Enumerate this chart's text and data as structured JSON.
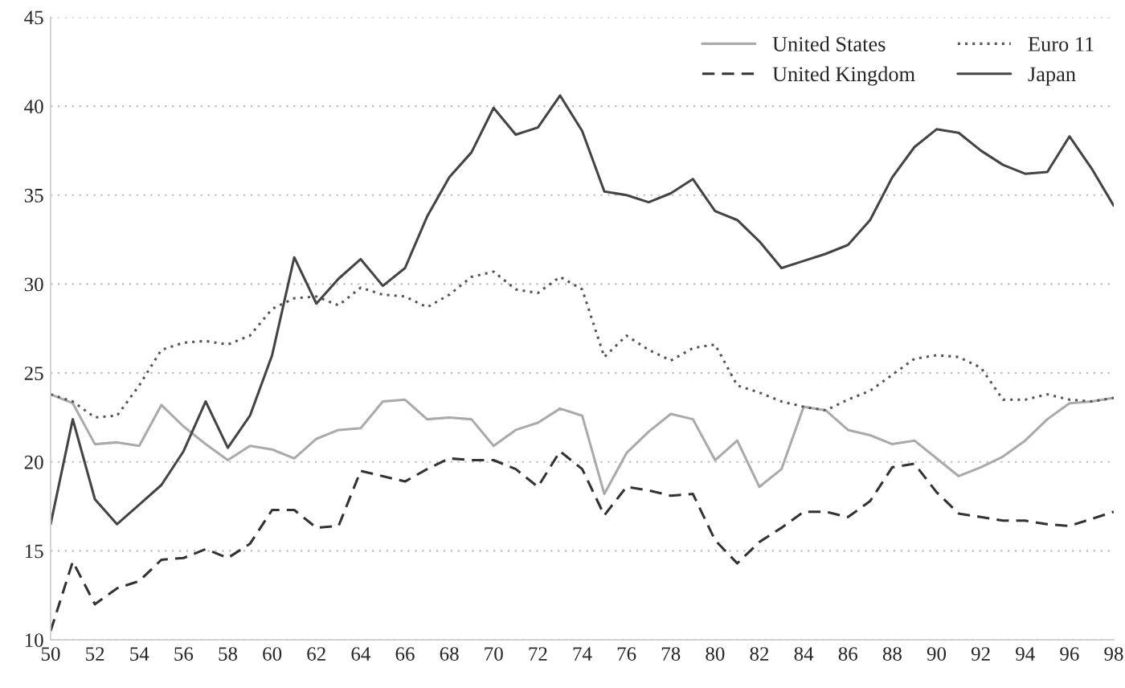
{
  "chart_data": {
    "type": "line",
    "x": [
      50,
      51,
      52,
      53,
      54,
      55,
      56,
      57,
      58,
      59,
      60,
      61,
      62,
      63,
      64,
      65,
      66,
      67,
      68,
      69,
      70,
      71,
      72,
      73,
      74,
      75,
      76,
      77,
      78,
      79,
      80,
      81,
      82,
      83,
      84,
      85,
      86,
      87,
      88,
      89,
      90,
      91,
      92,
      93,
      94,
      95,
      96,
      97,
      98
    ],
    "series": [
      {
        "name": "United States",
        "color": "#aaaaaa",
        "line_style": "solid",
        "values": [
          23.8,
          23.3,
          21.0,
          21.1,
          20.9,
          23.2,
          22.0,
          21.0,
          20.1,
          20.9,
          20.7,
          20.2,
          21.3,
          21.8,
          21.9,
          23.4,
          23.5,
          22.4,
          22.5,
          22.4,
          20.9,
          21.8,
          22.2,
          23.0,
          22.6,
          18.2,
          20.5,
          21.7,
          22.7,
          22.4,
          20.1,
          21.2,
          18.6,
          19.6,
          23.1,
          22.9,
          21.8,
          21.5,
          21.0,
          21.2,
          20.2,
          19.2,
          19.7,
          20.3,
          21.2,
          22.4,
          23.3,
          23.4,
          23.6
        ]
      },
      {
        "name": "Euro 11",
        "color": "#555555",
        "line_style": "dotted",
        "values": [
          23.8,
          23.4,
          22.5,
          22.6,
          24.3,
          26.3,
          26.7,
          26.8,
          26.6,
          27.1,
          28.6,
          29.2,
          29.3,
          28.8,
          29.8,
          29.4,
          29.3,
          28.7,
          29.4,
          30.4,
          30.7,
          29.7,
          29.5,
          30.4,
          29.7,
          25.9,
          27.1,
          26.3,
          25.7,
          26.4,
          26.6,
          24.3,
          23.9,
          23.4,
          23.1,
          22.9,
          23.5,
          24.0,
          24.9,
          25.8,
          26.0,
          25.9,
          25.3,
          23.5,
          23.5,
          23.8,
          23.5,
          23.4,
          23.6
        ]
      },
      {
        "name": "United Kingdom",
        "color": "#333333",
        "line_style": "dashed",
        "values": [
          10.5,
          14.4,
          12.0,
          12.9,
          13.3,
          14.5,
          14.6,
          15.1,
          14.6,
          15.4,
          17.3,
          17.3,
          16.3,
          16.4,
          19.5,
          19.2,
          18.9,
          19.6,
          20.2,
          20.1,
          20.1,
          19.6,
          18.6,
          20.6,
          19.6,
          17.0,
          18.6,
          18.4,
          18.1,
          18.2,
          15.6,
          14.3,
          15.5,
          16.3,
          17.2,
          17.2,
          16.9,
          17.8,
          19.7,
          19.9,
          18.3,
          17.1,
          16.9,
          16.7,
          16.7,
          16.5,
          16.4,
          16.8,
          17.2
        ]
      },
      {
        "name": "Japan",
        "color": "#444444",
        "line_style": "solid",
        "values": [
          16.5,
          22.4,
          17.9,
          16.5,
          17.6,
          18.7,
          20.6,
          23.4,
          20.8,
          22.6,
          26.0,
          31.5,
          28.9,
          30.3,
          31.4,
          29.9,
          30.9,
          33.8,
          36.0,
          37.4,
          39.9,
          38.4,
          38.8,
          40.6,
          38.6,
          35.2,
          35.0,
          34.6,
          35.1,
          35.9,
          34.1,
          33.6,
          32.4,
          30.9,
          31.3,
          31.7,
          32.2,
          33.6,
          36.0,
          37.7,
          38.7,
          38.5,
          37.5,
          36.7,
          36.2,
          36.3,
          38.3,
          36.5,
          34.4
        ]
      }
    ],
    "xlim": [
      50,
      98
    ],
    "xticks": [
      50,
      52,
      54,
      56,
      58,
      60,
      62,
      64,
      66,
      68,
      70,
      72,
      74,
      76,
      78,
      80,
      82,
      84,
      86,
      88,
      90,
      92,
      94,
      96,
      98
    ],
    "ylim": [
      10,
      45
    ],
    "yticks": [
      10,
      15,
      20,
      25,
      30,
      35,
      40,
      45
    ],
    "grid": "y",
    "legend": "top right"
  }
}
